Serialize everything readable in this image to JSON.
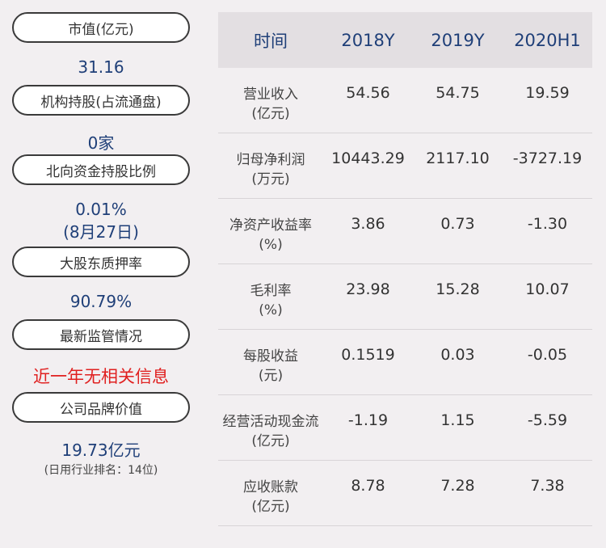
{
  "left": [
    {
      "label": "市值(亿元)",
      "value": "31.16"
    },
    {
      "label": "机构持股(占流通盘)",
      "value": "0家"
    },
    {
      "label": "北向资金持股比例",
      "value": "0.01%",
      "value2": "(8月27日)"
    },
    {
      "label": "大股东质押率",
      "value": "90.79%"
    },
    {
      "label": "最新监管情况",
      "value": "近一年无相关信息"
    },
    {
      "label": "公司品牌价值",
      "value": "19.73亿元",
      "note": "(日用行业排名：14位)"
    }
  ],
  "table": {
    "headers": [
      "时间",
      "2018Y",
      "2019Y",
      "2020H1"
    ],
    "rows": [
      {
        "l1": "营业收入",
        "l2": "(亿元)",
        "v": [
          "54.56",
          "54.75",
          "19.59"
        ]
      },
      {
        "l1": "归母净利润",
        "l2": "(万元)",
        "v": [
          "10443.29",
          "2117.10",
          "-3727.19"
        ]
      },
      {
        "l1": "净资产收益率",
        "l2": "(%)",
        "v": [
          "3.86",
          "0.73",
          "-1.30"
        ]
      },
      {
        "l1": "毛利率",
        "l2": "(%)",
        "v": [
          "23.98",
          "15.28",
          "10.07"
        ]
      },
      {
        "l1": "每股收益",
        "l2": "(元)",
        "v": [
          "0.1519",
          "0.03",
          "-0.05"
        ]
      },
      {
        "l1": "经营活动现金流",
        "l2": "(亿元)",
        "v": [
          "-1.19",
          "1.15",
          "-5.59"
        ]
      },
      {
        "l1": "应收账款",
        "l2": "(亿元)",
        "v": [
          "8.78",
          "7.28",
          "7.38"
        ]
      }
    ]
  }
}
